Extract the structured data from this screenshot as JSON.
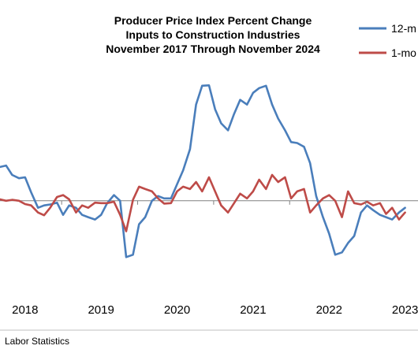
{
  "chart_data": {
    "type": "line",
    "title_lines": [
      "Producer Price Index Percent Change",
      "Inputs to Construction Industries",
      "November 2017 Through November 2024"
    ],
    "source": "Labor Statistics",
    "legend_position": "top-right",
    "x_tick_labels": [
      "2018",
      "2019",
      "2020",
      "2021",
      "2022",
      "2023"
    ],
    "x_tick_positions": [
      2018.0,
      2019.0,
      2020.0,
      2021.0,
      2022.0,
      2023.0
    ],
    "xlim": [
      2017.67,
      2023.17
    ],
    "ylim": [
      -18,
      28
    ],
    "zero_line": 0,
    "colors": {
      "series_12m": "#4a7ebb",
      "series_1m": "#be4b48",
      "zero_line": "#808080"
    },
    "series": [
      {
        "name": "12-m",
        "x": [
          2017.67,
          2017.75,
          2017.83,
          2017.92,
          2018.0,
          2018.08,
          2018.17,
          2018.25,
          2018.33,
          2018.42,
          2018.5,
          2018.58,
          2018.67,
          2018.75,
          2018.83,
          2018.92,
          2019.0,
          2019.08,
          2019.17,
          2019.25,
          2019.33,
          2019.42,
          2019.5,
          2019.58,
          2019.67,
          2019.75,
          2019.83,
          2019.92,
          2020.0,
          2020.08,
          2020.17,
          2020.25,
          2020.33,
          2020.42,
          2020.5,
          2020.58,
          2020.67,
          2020.75,
          2020.83,
          2020.92,
          2021.0,
          2021.08,
          2021.17,
          2021.25,
          2021.33,
          2021.42,
          2021.5,
          2021.58,
          2021.67,
          2021.75,
          2021.83,
          2021.92,
          2022.0,
          2022.08,
          2022.17,
          2022.25,
          2022.33,
          2022.42,
          2022.5,
          2022.58,
          2022.67,
          2022.75,
          2022.83,
          2022.92,
          2023.0
        ],
        "values": [
          7.2,
          7.5,
          5.5,
          4.8,
          5.0,
          1.8,
          -1.5,
          -1.0,
          -0.8,
          -0.4,
          -3.0,
          -1.0,
          -1.5,
          -3.0,
          -3.5,
          -4.0,
          -3.0,
          -0.5,
          1.2,
          0.0,
          -12.0,
          -11.5,
          -5.0,
          -3.5,
          0.0,
          1.0,
          0.5,
          0.5,
          3.5,
          6.5,
          11.0,
          20.5,
          24.5,
          24.6,
          19.5,
          16.5,
          15.0,
          18.5,
          21.5,
          20.5,
          23.0,
          24.0,
          24.5,
          20.5,
          17.5,
          15.0,
          12.5,
          12.3,
          11.5,
          8.0,
          1.0,
          -3.5,
          -7.0,
          -11.5,
          -11.0,
          -9.0,
          -7.5,
          -2.5,
          -1.0,
          -2.0,
          -3.0,
          -3.5,
          -4.0,
          -2.5,
          -1.5
        ]
      },
      {
        "name": "1-mo",
        "x": [
          2017.67,
          2017.75,
          2017.83,
          2017.92,
          2018.0,
          2018.08,
          2018.17,
          2018.25,
          2018.33,
          2018.42,
          2018.5,
          2018.58,
          2018.67,
          2018.75,
          2018.83,
          2018.92,
          2019.0,
          2019.08,
          2019.17,
          2019.25,
          2019.33,
          2019.42,
          2019.5,
          2019.58,
          2019.67,
          2019.75,
          2019.83,
          2019.92,
          2020.0,
          2020.08,
          2020.17,
          2020.25,
          2020.33,
          2020.42,
          2020.5,
          2020.58,
          2020.67,
          2020.75,
          2020.83,
          2020.92,
          2021.0,
          2021.08,
          2021.17,
          2021.25,
          2021.33,
          2021.42,
          2021.5,
          2021.58,
          2021.67,
          2021.75,
          2021.83,
          2021.92,
          2022.0,
          2022.08,
          2022.17,
          2022.25,
          2022.33,
          2022.42,
          2022.5,
          2022.58,
          2022.67,
          2022.75,
          2022.83,
          2022.92,
          2023.0
        ],
        "values": [
          0.3,
          0.0,
          0.2,
          0.0,
          -0.7,
          -1.0,
          -2.5,
          -3.1,
          -1.5,
          0.8,
          1.2,
          0.3,
          -2.5,
          -1.0,
          -1.5,
          -0.4,
          -0.5,
          -0.5,
          -0.2,
          -3.0,
          -6.5,
          0.2,
          3.0,
          2.5,
          2.0,
          0.5,
          -0.6,
          -0.5,
          2.0,
          3.0,
          2.5,
          4.0,
          2.0,
          5.0,
          2.0,
          -1.0,
          -2.5,
          -0.5,
          1.5,
          0.5,
          2.0,
          4.5,
          2.5,
          5.5,
          4.0,
          5.0,
          0.5,
          2.0,
          2.5,
          -2.5,
          -1.0,
          0.5,
          1.2,
          0.0,
          -3.5,
          2.0,
          -0.5,
          -0.8,
          -0.2,
          -1.0,
          -0.5,
          -2.8,
          -1.5,
          -4.0,
          -2.5
        ]
      }
    ]
  }
}
